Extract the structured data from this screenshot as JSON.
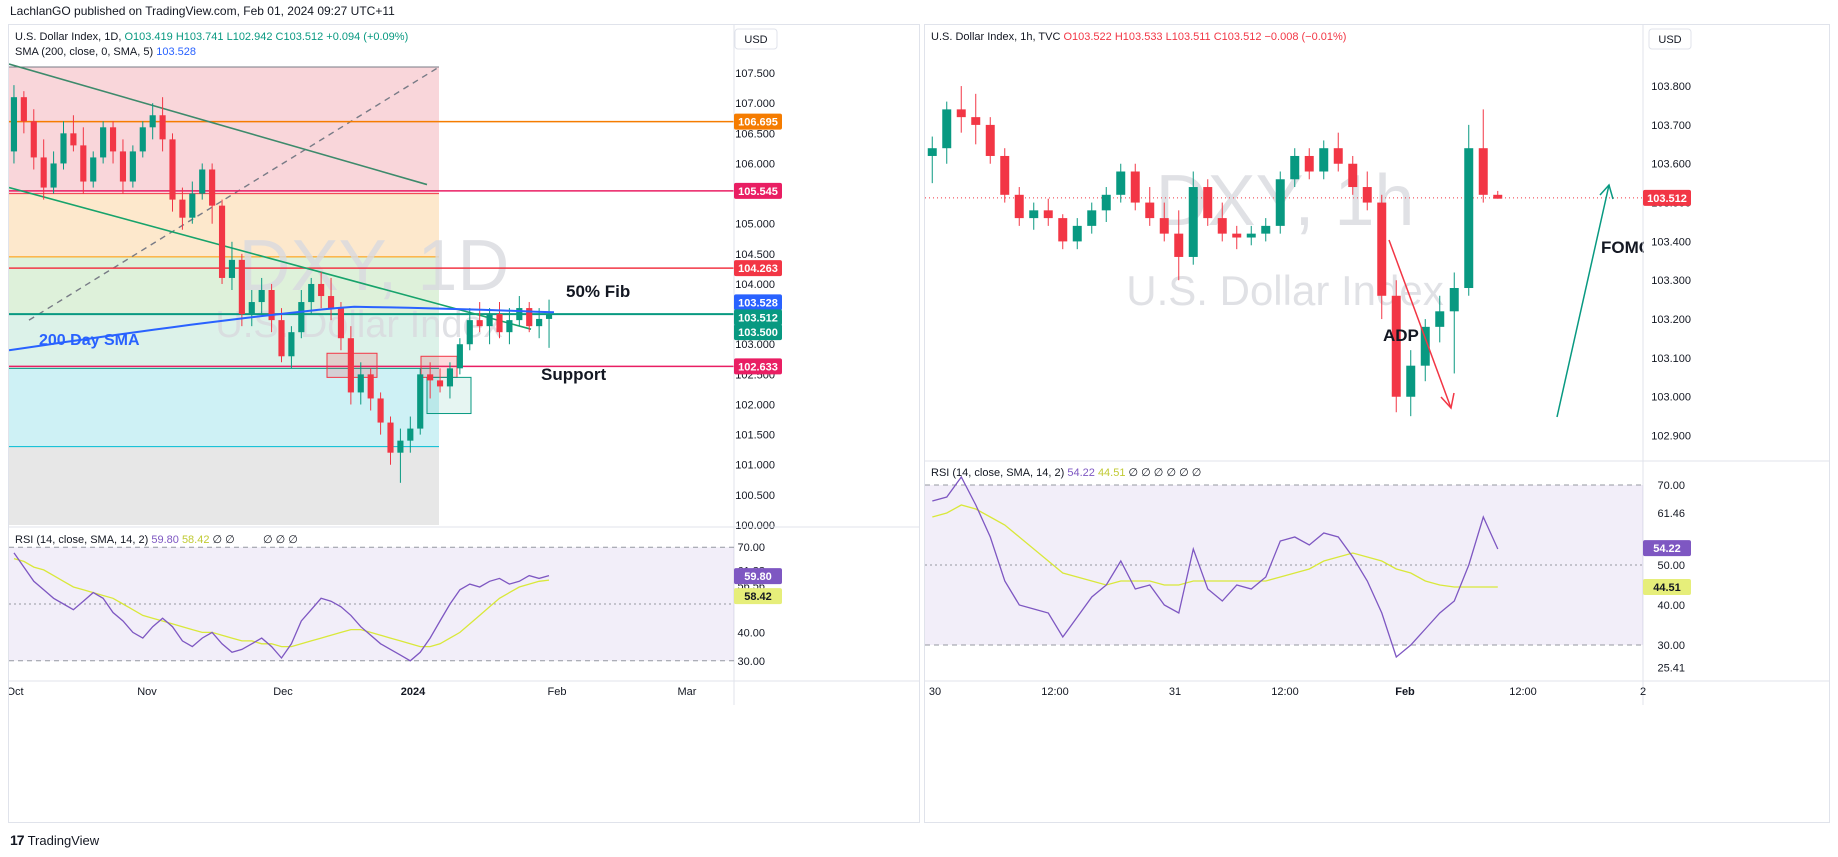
{
  "credit": "LachlanGO published on TradingView.com, Feb 01, 2024 09:27 UTC+11",
  "footer": {
    "brand": "TradingView",
    "logo_icon": "tradingview-logo-icon"
  },
  "colors": {
    "bull": "#089981",
    "bear": "#f23645",
    "sma": "#2962ff",
    "rsi": "#7e57c2",
    "rsi_ma": "#d9e83a",
    "fib_band": "#b2ebf2"
  },
  "left": {
    "legend_line1": {
      "name": "U.S. Dollar Index, 1D,",
      "o": "O103.419",
      "h": "H103.741",
      "l": "L102.942",
      "c": "C103.512",
      "chg": "+0.094 (+0.09%)"
    },
    "legend_line2": {
      "label": "SMA (200, close, 0, SMA, 5)",
      "value": "103.528"
    },
    "currency": "USD",
    "watermark_symbol": "DXY, 1D",
    "watermark_name": "U.S. Dollar Index",
    "annotations": [
      "50% Fib",
      "200 Day SMA",
      "Support"
    ],
    "price_badges": [
      {
        "text": "106.695",
        "bg": "#f57c00",
        "fg": "#ffffff",
        "value": 106.695
      },
      {
        "text": "105.545",
        "bg": "#e91e63",
        "fg": "#ffffff",
        "value": 105.545
      },
      {
        "text": "104.263",
        "bg": "#f23645",
        "fg": "#ffffff",
        "value": 104.263
      },
      {
        "text": "103.528",
        "bg": "#2962ff",
        "fg": "#ffffff",
        "value": 103.528
      },
      {
        "text": "103.512",
        "bg": "#089981",
        "fg": "#ffffff",
        "value": 103.512
      },
      {
        "text": "103.500",
        "bg": "#089981",
        "fg": "#ffffff",
        "value": 103.5
      },
      {
        "text": "102.633",
        "bg": "#e91e63",
        "fg": "#ffffff",
        "value": 102.633
      }
    ],
    "rsi_legend": {
      "label": "RSI (14, close, SMA, 14, 2)",
      "rsi": "59.80",
      "ma": "58.42",
      "dots": "∅ ∅",
      "dots2": "∅ ∅ ∅"
    },
    "rsi_ticks": [
      "70.00",
      "61.88",
      "56.56",
      "40.00",
      "30.00"
    ],
    "rsi_badges": [
      {
        "text": "59.80",
        "bg": "#7e57c2",
        "fg": "#ffffff"
      },
      {
        "text": "58.42",
        "bg": "#e6ee7a",
        "fg": "#131722"
      }
    ],
    "time_labels": [
      "Oct",
      "Nov",
      "Dec",
      "2024",
      "Feb",
      "Mar"
    ]
  },
  "right": {
    "legend": {
      "name": "U.S. Dollar Index, 1h, TVC",
      "o": "O103.522",
      "h": "H103.533",
      "l": "L103.511",
      "c": "C103.512",
      "chg": "−0.008 (−0.01%)"
    },
    "currency": "USD",
    "watermark_symbol": "DXY, 1h",
    "watermark_name": "U.S. Dollar Index",
    "annotations": [
      "ADP",
      "FOMC"
    ],
    "price_badge": {
      "text": "103.512",
      "bg": "#f23645",
      "fg": "#ffffff",
      "value": 103.512
    },
    "rsi_legend": {
      "label": "RSI (14, close, SMA, 14, 2)",
      "rsi": "54.22",
      "ma": "44.51",
      "dots": "∅ ∅ ∅ ∅ ∅ ∅"
    },
    "rsi_ticks": [
      "70.00",
      "61.46",
      "50.00",
      "40.00",
      "30.00",
      "25.41"
    ],
    "rsi_badges": [
      {
        "text": "54.22",
        "bg": "#7e57c2",
        "fg": "#ffffff"
      },
      {
        "text": "44.51",
        "bg": "#e6ee7a",
        "fg": "#131722"
      }
    ],
    "time_labels": [
      "30",
      "12:00",
      "31",
      "12:00",
      "Feb",
      "12:00",
      "2"
    ]
  },
  "chart_data": [
    {
      "type": "candlestick",
      "title": "U.S. Dollar Index, 1D",
      "y_range": [
        100.0,
        107.8
      ],
      "y_ticks": [
        "107.500",
        "107.000",
        "106.500",
        "106.000",
        "105.500",
        "105.000",
        "104.500",
        "104.000",
        "103.500",
        "103.000",
        "102.500",
        "102.000",
        "101.500",
        "101.000",
        "100.500",
        "100.000"
      ],
      "horizontal_levels": [
        106.695,
        105.545,
        104.263,
        103.5,
        102.633
      ],
      "ohlc": [
        [
          106.2,
          107.3,
          106.0,
          107.1
        ],
        [
          107.1,
          107.2,
          106.5,
          106.7
        ],
        [
          106.7,
          106.9,
          105.9,
          106.1
        ],
        [
          106.1,
          106.4,
          105.4,
          105.6
        ],
        [
          105.6,
          106.2,
          105.5,
          106.0
        ],
        [
          106.0,
          106.7,
          105.9,
          106.5
        ],
        [
          106.5,
          106.8,
          106.2,
          106.3
        ],
        [
          106.3,
          106.6,
          105.5,
          105.7
        ],
        [
          105.7,
          106.2,
          105.6,
          106.1
        ],
        [
          106.1,
          106.7,
          106.0,
          106.6
        ],
        [
          106.6,
          106.7,
          106.0,
          106.2
        ],
        [
          106.2,
          106.4,
          105.5,
          105.7
        ],
        [
          105.7,
          106.3,
          105.6,
          106.2
        ],
        [
          106.2,
          106.7,
          106.1,
          106.6
        ],
        [
          106.6,
          107.0,
          106.4,
          106.8
        ],
        [
          106.8,
          107.1,
          106.2,
          106.4
        ],
        [
          106.4,
          106.5,
          105.2,
          105.4
        ],
        [
          105.4,
          105.6,
          104.9,
          105.1
        ],
        [
          105.1,
          105.7,
          105.0,
          105.5
        ],
        [
          105.5,
          106.0,
          105.4,
          105.9
        ],
        [
          105.9,
          106.0,
          105.0,
          105.3
        ],
        [
          105.3,
          105.4,
          104.0,
          104.1
        ],
        [
          104.1,
          104.7,
          103.9,
          104.4
        ],
        [
          104.4,
          104.5,
          103.3,
          103.5
        ],
        [
          103.5,
          103.9,
          103.3,
          103.7
        ],
        [
          103.7,
          104.1,
          103.5,
          103.9
        ],
        [
          103.9,
          104.0,
          103.2,
          103.4
        ],
        [
          103.4,
          103.6,
          102.7,
          102.8
        ],
        [
          102.8,
          103.3,
          102.6,
          103.2
        ],
        [
          103.2,
          103.9,
          103.1,
          103.7
        ],
        [
          103.7,
          104.1,
          103.5,
          104.0
        ],
        [
          104.0,
          104.2,
          103.6,
          103.8
        ],
        [
          103.8,
          104.1,
          103.4,
          103.6
        ],
        [
          103.6,
          103.7,
          102.9,
          103.1
        ],
        [
          103.1,
          103.3,
          102.0,
          102.2
        ],
        [
          102.2,
          102.7,
          102.0,
          102.5
        ],
        [
          102.5,
          102.6,
          101.9,
          102.1
        ],
        [
          102.1,
          102.2,
          101.5,
          101.7
        ],
        [
          101.7,
          101.8,
          101.0,
          101.2
        ],
        [
          101.2,
          101.6,
          100.7,
          101.4
        ],
        [
          101.4,
          101.8,
          101.2,
          101.6
        ],
        [
          101.6,
          102.6,
          101.5,
          102.5
        ],
        [
          102.5,
          102.7,
          102.1,
          102.4
        ],
        [
          102.4,
          102.6,
          102.2,
          102.3
        ],
        [
          102.3,
          102.7,
          102.1,
          102.6
        ],
        [
          102.6,
          103.1,
          102.5,
          103.0
        ],
        [
          103.0,
          103.6,
          102.9,
          103.4
        ],
        [
          103.4,
          103.7,
          103.2,
          103.3
        ],
        [
          103.3,
          103.6,
          103.0,
          103.5
        ],
        [
          103.5,
          103.7,
          103.1,
          103.2
        ],
        [
          103.2,
          103.6,
          103.0,
          103.4
        ],
        [
          103.4,
          103.8,
          103.3,
          103.6
        ],
        [
          103.6,
          103.7,
          103.2,
          103.3
        ],
        [
          103.3,
          103.6,
          103.1,
          103.42
        ],
        [
          103.42,
          103.74,
          102.94,
          103.51
        ]
      ],
      "sma200": {
        "from": 102.9,
        "to": 103.53
      }
    },
    {
      "type": "line",
      "title": "RSI (14, close, SMA, 14, 2)",
      "y_range": [
        25,
        75
      ],
      "rsi": [
        68,
        63,
        58,
        55,
        52,
        50,
        48,
        51,
        54,
        52,
        47,
        44,
        40,
        38,
        42,
        45,
        42,
        37,
        35,
        38,
        40,
        36,
        33,
        34,
        36,
        38,
        35,
        31,
        36,
        44,
        48,
        52,
        51,
        49,
        46,
        42,
        39,
        36,
        34,
        32,
        30,
        33,
        38,
        44,
        50,
        55,
        57,
        56,
        58,
        59,
        57,
        58,
        60,
        59,
        60
      ],
      "ma": [
        66,
        65,
        63,
        62,
        60,
        58,
        56,
        55,
        54,
        53,
        52,
        50,
        48,
        46,
        45,
        44,
        43,
        42,
        41,
        40,
        40,
        39,
        38,
        37,
        37,
        36,
        36,
        35,
        35,
        36,
        37,
        38,
        39,
        40,
        41,
        41,
        40,
        39,
        38,
        37,
        36,
        35,
        35,
        36,
        38,
        40,
        43,
        46,
        49,
        52,
        54,
        56,
        57,
        58,
        58.4
      ]
    },
    {
      "type": "candlestick",
      "title": "U.S. Dollar Index, 1h, TVC",
      "y_range": [
        102.85,
        103.88
      ],
      "y_ticks": [
        "103.800",
        "103.700",
        "103.600",
        "103.500",
        "103.400",
        "103.300",
        "103.200",
        "103.100",
        "103.000",
        "102.900"
      ],
      "ohlc": [
        [
          103.62,
          103.67,
          103.55,
          103.64
        ],
        [
          103.64,
          103.76,
          103.6,
          103.74
        ],
        [
          103.74,
          103.8,
          103.68,
          103.72
        ],
        [
          103.72,
          103.78,
          103.65,
          103.7
        ],
        [
          103.7,
          103.72,
          103.6,
          103.62
        ],
        [
          103.62,
          103.64,
          103.5,
          103.52
        ],
        [
          103.52,
          103.54,
          103.44,
          103.46
        ],
        [
          103.46,
          103.5,
          103.43,
          103.48
        ],
        [
          103.48,
          103.51,
          103.44,
          103.46
        ],
        [
          103.46,
          103.47,
          103.38,
          103.4
        ],
        [
          103.4,
          103.46,
          103.38,
          103.44
        ],
        [
          103.44,
          103.5,
          103.42,
          103.48
        ],
        [
          103.48,
          103.54,
          103.45,
          103.52
        ],
        [
          103.52,
          103.6,
          103.5,
          103.58
        ],
        [
          103.58,
          103.6,
          103.48,
          103.5
        ],
        [
          103.5,
          103.54,
          103.44,
          103.46
        ],
        [
          103.46,
          103.5,
          103.4,
          103.42
        ],
        [
          103.42,
          103.48,
          103.3,
          103.36
        ],
        [
          103.36,
          103.58,
          103.34,
          103.54
        ],
        [
          103.54,
          103.56,
          103.44,
          103.46
        ],
        [
          103.46,
          103.5,
          103.4,
          103.42
        ],
        [
          103.42,
          103.44,
          103.38,
          103.41
        ],
        [
          103.41,
          103.44,
          103.39,
          103.42
        ],
        [
          103.42,
          103.46,
          103.4,
          103.44
        ],
        [
          103.44,
          103.58,
          103.42,
          103.56
        ],
        [
          103.56,
          103.64,
          103.54,
          103.62
        ],
        [
          103.62,
          103.64,
          103.56,
          103.58
        ],
        [
          103.58,
          103.66,
          103.56,
          103.64
        ],
        [
          103.64,
          103.68,
          103.58,
          103.6
        ],
        [
          103.6,
          103.62,
          103.52,
          103.54
        ],
        [
          103.54,
          103.58,
          103.48,
          103.5
        ],
        [
          103.5,
          103.52,
          103.2,
          103.26
        ],
        [
          103.26,
          103.3,
          102.96,
          103.0
        ],
        [
          103.0,
          103.12,
          102.95,
          103.08
        ],
        [
          103.08,
          103.2,
          103.04,
          103.18
        ],
        [
          103.18,
          103.26,
          103.14,
          103.22
        ],
        [
          103.22,
          103.32,
          103.06,
          103.28
        ],
        [
          103.28,
          103.7,
          103.26,
          103.64
        ],
        [
          103.64,
          103.74,
          103.5,
          103.52
        ],
        [
          103.52,
          103.53,
          103.51,
          103.51
        ]
      ],
      "annotations": [
        "ADP",
        "FOMC"
      ]
    },
    {
      "type": "line",
      "title": "RSI (14, close, SMA, 14, 2)",
      "y_range": [
        22,
        75
      ],
      "rsi": [
        66,
        67,
        72,
        65,
        57,
        46,
        40,
        39,
        38,
        32,
        37,
        42,
        45,
        51,
        44,
        45,
        40,
        38,
        54,
        44,
        41,
        45,
        44,
        47,
        56,
        57,
        55,
        58,
        57,
        52,
        46,
        38,
        27,
        30,
        34,
        38,
        41,
        50,
        62,
        54
      ],
      "ma": [
        62,
        63,
        65,
        64,
        62,
        60,
        57,
        54,
        51,
        48,
        47,
        46,
        45,
        46,
        46,
        46,
        45,
        45,
        46,
        46,
        46,
        46,
        46,
        46,
        47,
        48,
        49,
        51,
        52,
        53,
        52,
        51,
        49,
        48,
        46,
        45,
        44.5,
        44.5,
        44.5,
        44.5
      ]
    }
  ]
}
